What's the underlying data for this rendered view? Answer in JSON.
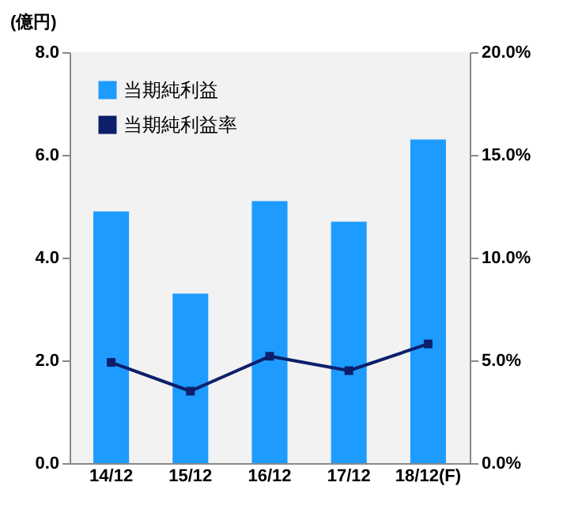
{
  "chart_data": {
    "type": "bar",
    "ylabel": "(億円)",
    "categories": [
      "14/12",
      "15/12",
      "16/12",
      "17/12",
      "18/12(F)"
    ],
    "series": [
      {
        "name": "当期純利益",
        "color": "#1e9bff",
        "values": [
          4.9,
          3.3,
          5.1,
          4.7,
          6.3
        ]
      },
      {
        "name": "当期純利益率",
        "type": "line",
        "axis": "y2",
        "color": "#0d1f6b",
        "values": [
          4.9,
          3.5,
          5.2,
          4.5,
          5.8
        ]
      }
    ],
    "ylim": [
      0,
      8
    ],
    "yticks": [
      {
        "value": 0,
        "label": "0.0"
      },
      {
        "value": 2,
        "label": "2.0"
      },
      {
        "value": 4,
        "label": "4.0"
      },
      {
        "value": 6,
        "label": "6.0"
      },
      {
        "value": 8,
        "label": "8.0"
      }
    ],
    "y2lim": [
      0,
      20
    ],
    "y2ticks": [
      {
        "value": 0,
        "label": "0.0%"
      },
      {
        "value": 5,
        "label": "5.0%"
      },
      {
        "value": 10,
        "label": "10.0%"
      },
      {
        "value": 15,
        "label": "15.0%"
      },
      {
        "value": 20,
        "label": "20.0%"
      }
    ],
    "legend": "top left",
    "marker": "square",
    "line_style": "solid"
  }
}
